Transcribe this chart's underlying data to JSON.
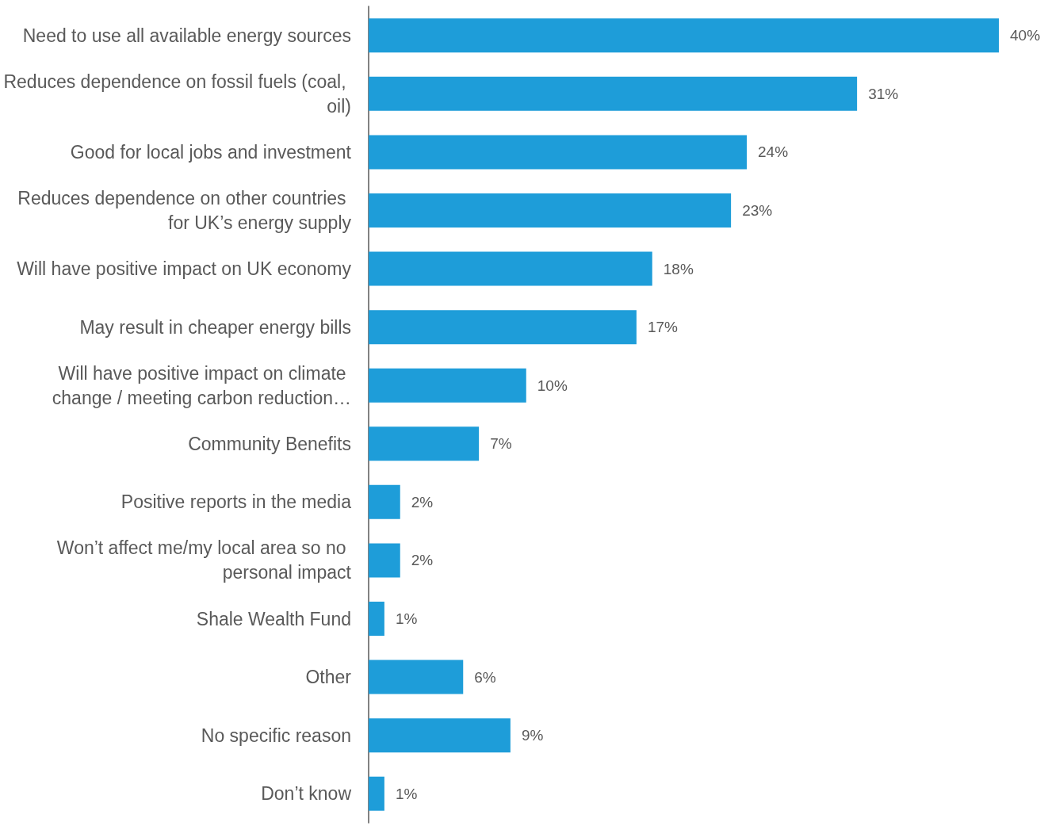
{
  "chart_data": {
    "type": "bar",
    "orientation": "horizontal",
    "categories": [
      "Need to use all available energy sources",
      "Reduces dependence on fossil fuels (coal, oil)",
      "Good for local jobs and investment",
      "Reduces dependence on other countries for UK’s energy supply",
      "Will have positive impact on UK economy",
      "May result in cheaper energy bills",
      "Will have positive impact on climate change / meeting carbon reduction…",
      "Community Benefits",
      "Positive reports in the media",
      "Won’t affect me/my local area so no personal impact",
      "Shale Wealth Fund",
      "Other",
      "No specific reason",
      "Don’t know"
    ],
    "values": [
      40,
      31,
      24,
      23,
      18,
      17,
      10,
      7,
      2,
      2,
      1,
      6,
      9,
      1
    ],
    "value_labels": [
      "40%",
      "31%",
      "24%",
      "23%",
      "18%",
      "17%",
      "10%",
      "7%",
      "2%",
      "2%",
      "1%",
      "6%",
      "9%",
      "1%"
    ],
    "color": "#1e9dd9"
  }
}
